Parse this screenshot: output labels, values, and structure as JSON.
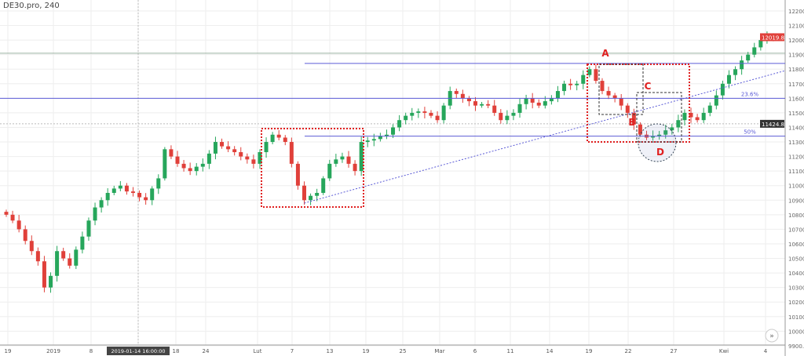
{
  "header": {
    "title": "DE30.pro, 240"
  },
  "chart_data": {
    "type": "candlestick",
    "symbol": "DE30.pro",
    "timeframe": "240",
    "ylim": [
      9900,
      12200
    ],
    "y_ticks": [
      12200,
      12100,
      12000,
      11900,
      11800,
      11700,
      11600,
      11500,
      11400,
      11300,
      11200,
      11100,
      11000,
      10900,
      10800,
      10700,
      10600,
      10500,
      10400,
      10300,
      10200,
      10100,
      10000,
      9900
    ],
    "x_ticks": [
      "19",
      "2019",
      "8",
      "2019-01-14 16:00:00",
      "18",
      "24",
      "Lut",
      "7",
      "13",
      "19",
      "25",
      "Mar",
      "6",
      "11",
      "14",
      "19",
      "22",
      "27",
      "Kwi",
      "4"
    ],
    "closes": [
      10800,
      10760,
      10700,
      10620,
      10550,
      10480,
      10300,
      10380,
      10550,
      10500,
      10450,
      10560,
      10650,
      10760,
      10850,
      10900,
      10950,
      10980,
      11000,
      10960,
      10950,
      10920,
      10900,
      10980,
      11050,
      11250,
      11200,
      11150,
      11120,
      11100,
      11130,
      11150,
      11220,
      11300,
      11270,
      11250,
      11230,
      11200,
      11180,
      11150,
      11230,
      11300,
      11350,
      11330,
      11300,
      11150,
      11000,
      10900,
      10930,
      10950,
      11050,
      11150,
      11180,
      11200,
      11150,
      11100,
      11300,
      11310,
      11320,
      11340,
      11350,
      11400,
      11450,
      11480,
      11500,
      11510,
      11500,
      11480,
      11450,
      11550,
      11650,
      11630,
      11600,
      11580,
      11550,
      11560,
      11550,
      11500,
      11450,
      11480,
      11500,
      11560,
      11600,
      11570,
      11550,
      11580,
      11600,
      11650,
      11700,
      11690,
      11700,
      11760,
      11800,
      11720,
      11650,
      11620,
      11600,
      11550,
      11500,
      11420,
      11350,
      11330,
      11340,
      11350,
      11380,
      11400,
      11450,
      11500,
      11470,
      11450,
      11500,
      11550,
      11620,
      11700,
      11760,
      11800,
      11860,
      11900,
      11950,
      12000,
      12030,
      12019.8
    ],
    "last_price": "12019.8",
    "crosshair_price": "11424.8",
    "colors": {
      "up": "#26a65b",
      "down": "#e0403a",
      "levels": "#5b5bd6",
      "boxes": "#e02020",
      "dashed_box": "#333333"
    },
    "levels": [
      {
        "price": 11840
      },
      {
        "price": 11600,
        "label": "23.6%"
      },
      {
        "price": 11340,
        "label": "50%"
      }
    ],
    "gray_line": 11910,
    "trendline": {
      "from": {
        "index": 47,
        "price": 10880
      },
      "to": {
        "index": 122,
        "price": 11790
      }
    },
    "annotations": [
      {
        "text": "A"
      },
      {
        "text": "B"
      },
      {
        "text": "C"
      },
      {
        "text": "D"
      }
    ],
    "scroll_button": "»"
  }
}
